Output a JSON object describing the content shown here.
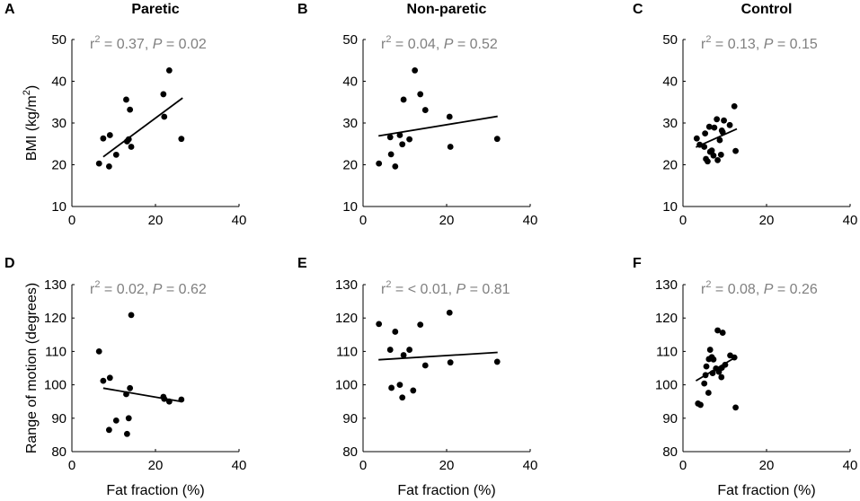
{
  "chart_data": [
    {
      "panel": "A",
      "title": "Paretic",
      "type": "scatter",
      "stat": {
        "r2": "0.37",
        "p": "0.02"
      },
      "xlim": [
        0,
        40
      ],
      "ylim": [
        10,
        50
      ],
      "xticks": [
        0,
        20,
        40
      ],
      "yticks": [
        10,
        20,
        30,
        40,
        50
      ],
      "xlabel": "",
      "ylabel": "BMI (kg/m2)",
      "points": [
        [
          6.5,
          20.3
        ],
        [
          7.5,
          26.3
        ],
        [
          8.9,
          19.6
        ],
        [
          9.1,
          27.1
        ],
        [
          10.6,
          22.4
        ],
        [
          13.0,
          35.6
        ],
        [
          13.2,
          25.6
        ],
        [
          13.6,
          26.1
        ],
        [
          13.9,
          33.2
        ],
        [
          14.2,
          24.3
        ],
        [
          21.9,
          36.9
        ],
        [
          22.1,
          31.5
        ],
        [
          23.3,
          42.6
        ],
        [
          26.2,
          26.2
        ]
      ],
      "fit": {
        "x": [
          7.5,
          26.5
        ],
        "y": [
          21.9,
          36.0
        ]
      }
    },
    {
      "panel": "B",
      "title": "Non-paretic",
      "type": "scatter",
      "stat": {
        "r2": "0.04",
        "p": "0.52"
      },
      "xlim": [
        0,
        40
      ],
      "ylim": [
        10,
        50
      ],
      "xticks": [
        0,
        20,
        40
      ],
      "yticks": [
        10,
        20,
        30,
        40,
        50
      ],
      "xlabel": "",
      "ylabel": "",
      "points": [
        [
          3.8,
          20.3
        ],
        [
          6.5,
          26.6
        ],
        [
          6.7,
          22.5
        ],
        [
          7.7,
          19.6
        ],
        [
          8.8,
          27.1
        ],
        [
          9.4,
          24.9
        ],
        [
          9.7,
          35.6
        ],
        [
          11.1,
          26.1
        ],
        [
          12.4,
          42.6
        ],
        [
          13.7,
          36.9
        ],
        [
          14.9,
          33.1
        ],
        [
          20.7,
          31.5
        ],
        [
          20.9,
          24.3
        ],
        [
          32.1,
          26.2
        ]
      ],
      "fit": {
        "x": [
          3.7,
          32.2
        ],
        "y": [
          26.9,
          31.6
        ]
      }
    },
    {
      "panel": "C",
      "title": "Control",
      "type": "scatter",
      "stat": {
        "r2": "0.13",
        "p": "0.15"
      },
      "xlim": [
        0,
        40
      ],
      "ylim": [
        10,
        50
      ],
      "xticks": [
        0,
        20,
        40
      ],
      "yticks": [
        10,
        20,
        30,
        40,
        50
      ],
      "xlabel": "",
      "ylabel": "",
      "points": [
        [
          3.3,
          26.3
        ],
        [
          4.0,
          24.8
        ],
        [
          5.1,
          24.3
        ],
        [
          5.3,
          27.5
        ],
        [
          5.5,
          21.4
        ],
        [
          5.9,
          20.8
        ],
        [
          6.3,
          29.1
        ],
        [
          6.5,
          23.1
        ],
        [
          6.9,
          23.4
        ],
        [
          7.3,
          22.2
        ],
        [
          7.5,
          28.9
        ],
        [
          8.1,
          30.9
        ],
        [
          8.3,
          21.1
        ],
        [
          8.8,
          25.9
        ],
        [
          9.1,
          22.4
        ],
        [
          9.3,
          28.2
        ],
        [
          9.5,
          27.8
        ],
        [
          9.8,
          30.6
        ],
        [
          11.2,
          29.5
        ],
        [
          12.3,
          34.0
        ],
        [
          12.6,
          23.3
        ]
      ],
      "fit": {
        "x": [
          3.1,
          12.9
        ],
        "y": [
          24.2,
          28.6
        ]
      }
    },
    {
      "panel": "D",
      "title": "",
      "type": "scatter",
      "stat": {
        "r2": "0.02",
        "p": "0.62"
      },
      "xlim": [
        0,
        40
      ],
      "ylim": [
        80,
        130
      ],
      "xticks": [
        0,
        20,
        40
      ],
      "yticks": [
        80,
        90,
        100,
        110,
        120,
        130
      ],
      "xlabel": "Fat fraction (%)",
      "ylabel": "Range of motion (degrees)",
      "points": [
        [
          6.5,
          110.0
        ],
        [
          7.5,
          101.2
        ],
        [
          8.9,
          86.5
        ],
        [
          9.1,
          102.1
        ],
        [
          10.6,
          89.3
        ],
        [
          13.0,
          97.2
        ],
        [
          13.2,
          85.3
        ],
        [
          13.6,
          90.0
        ],
        [
          13.9,
          99.0
        ],
        [
          14.2,
          120.9
        ],
        [
          21.9,
          96.4
        ],
        [
          22.1,
          95.8
        ],
        [
          23.3,
          95.0
        ],
        [
          26.2,
          95.6
        ]
      ],
      "fit": {
        "x": [
          7.5,
          26.2
        ],
        "y": [
          99.0,
          95.0
        ]
      }
    },
    {
      "panel": "E",
      "title": "",
      "type": "scatter",
      "stat": {
        "r2": "< 0.01",
        "p": "0.81"
      },
      "xlim": [
        0,
        40
      ],
      "ylim": [
        80,
        130
      ],
      "xticks": [
        0,
        20,
        40
      ],
      "yticks": [
        80,
        90,
        100,
        110,
        120,
        130
      ],
      "xlabel": "Fat fraction (%)",
      "ylabel": "",
      "points": [
        [
          3.8,
          118.2
        ],
        [
          6.5,
          110.5
        ],
        [
          6.8,
          99.1
        ],
        [
          7.7,
          115.9
        ],
        [
          8.8,
          100.0
        ],
        [
          9.4,
          96.2
        ],
        [
          9.7,
          108.9
        ],
        [
          11.1,
          110.5
        ],
        [
          12.0,
          98.3
        ],
        [
          13.7,
          118.0
        ],
        [
          14.9,
          105.8
        ],
        [
          20.7,
          121.6
        ],
        [
          20.9,
          106.7
        ],
        [
          32.1,
          106.9
        ]
      ],
      "fit": {
        "x": [
          3.7,
          32.2
        ],
        "y": [
          107.5,
          109.7
        ]
      }
    },
    {
      "panel": "F",
      "title": "",
      "type": "scatter",
      "stat": {
        "r2": "0.08",
        "p": "0.26"
      },
      "xlim": [
        0,
        40
      ],
      "ylim": [
        80,
        130
      ],
      "xticks": [
        0,
        20,
        40
      ],
      "yticks": [
        80,
        90,
        100,
        110,
        120,
        130
      ],
      "xlabel": "Fat fraction (%)",
      "ylabel": "",
      "points": [
        [
          3.6,
          94.4
        ],
        [
          4.2,
          94.0
        ],
        [
          5.1,
          100.4
        ],
        [
          5.4,
          102.9
        ],
        [
          5.6,
          105.5
        ],
        [
          6.1,
          97.6
        ],
        [
          6.2,
          107.7
        ],
        [
          6.5,
          110.5
        ],
        [
          6.9,
          108.3
        ],
        [
          7.1,
          103.5
        ],
        [
          7.3,
          107.6
        ],
        [
          7.9,
          104.9
        ],
        [
          8.3,
          116.3
        ],
        [
          8.6,
          103.9
        ],
        [
          9.2,
          102.3
        ],
        [
          9.3,
          105.1
        ],
        [
          9.5,
          115.6
        ],
        [
          10.1,
          106.0
        ],
        [
          11.3,
          108.8
        ],
        [
          12.3,
          108.2
        ],
        [
          12.6,
          93.2
        ]
      ],
      "fit": {
        "x": [
          3.1,
          12.9
        ],
        "y": [
          101.2,
          108.5
        ]
      }
    }
  ]
}
